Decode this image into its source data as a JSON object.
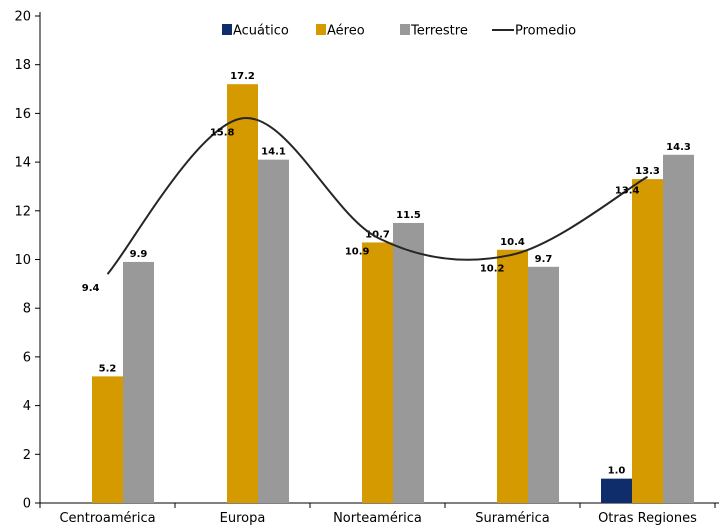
{
  "chart_data": {
    "type": "bar",
    "categories": [
      "Centroamérica",
      "Europa",
      "Norteamérica",
      "Suramérica",
      "Otras Regiones"
    ],
    "series": [
      {
        "name": "Acuático",
        "color": "#0f2d6b",
        "values": [
          0,
          0,
          0,
          0,
          1.0
        ],
        "labels": [
          null,
          null,
          null,
          null,
          "1.0"
        ]
      },
      {
        "name": "Aéreo",
        "color": "#d49a00",
        "values": [
          5.2,
          17.2,
          10.7,
          10.4,
          13.3
        ],
        "labels": [
          "5.2",
          "17.2",
          "10.7",
          "10.4",
          "13.3"
        ]
      },
      {
        "name": "Terrestre",
        "color": "#999999",
        "values": [
          9.9,
          14.1,
          11.5,
          9.7,
          14.3
        ],
        "labels": [
          "9.9",
          "14.1",
          "11.5",
          "9.7",
          "14.3"
        ]
      }
    ],
    "line": {
      "name": "Promedio",
      "color": "#262626",
      "values": [
        9.4,
        15.8,
        10.9,
        10.2,
        13.4
      ],
      "labels": [
        "9.4",
        "15.8",
        "10.9",
        "10.2",
        "13.4"
      ]
    },
    "ylim": [
      0,
      20
    ],
    "yticks": [
      "0",
      "2",
      "4",
      "6",
      "8",
      "10",
      "12",
      "14",
      "16",
      "18",
      "20"
    ],
    "legend_position": "top",
    "grid": false
  }
}
